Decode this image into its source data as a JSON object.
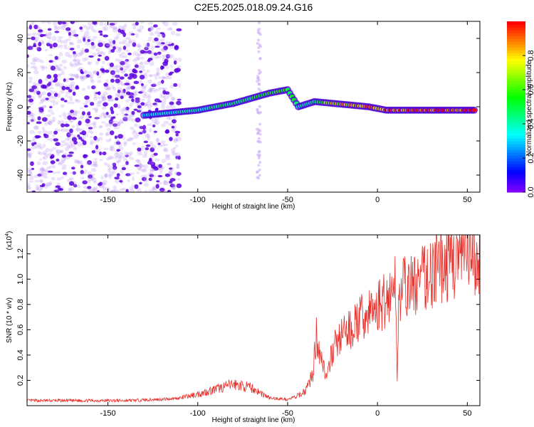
{
  "title": "C2E5.2025.018.09.24.G16",
  "chart_data": [
    {
      "type": "heatmap",
      "xlabel": "Height of straight line (km)",
      "ylabel": "Frequency (Hz)",
      "xlim": [
        -195,
        57
      ],
      "ylim": [
        -50,
        50
      ],
      "xticks": [
        -150,
        -100,
        -50,
        0,
        50
      ],
      "yticks": [
        -40,
        -20,
        0,
        20,
        40
      ],
      "colorbar": {
        "label": "Normalized spectral amplitude",
        "range": [
          0,
          1
        ],
        "ticks": [
          "0.0",
          "0.2",
          "0.4",
          "0.6",
          "0.8"
        ],
        "colormap": "rainbow"
      },
      "ridge": [
        {
          "x": -130,
          "y": -5,
          "amp": 0.3
        },
        {
          "x": -120,
          "y": -4,
          "amp": 0.35
        },
        {
          "x": -110,
          "y": -3,
          "amp": 0.4
        },
        {
          "x": -100,
          "y": -2,
          "amp": 0.4
        },
        {
          "x": -90,
          "y": 0,
          "amp": 0.45
        },
        {
          "x": -80,
          "y": 2,
          "amp": 0.5
        },
        {
          "x": -70,
          "y": 5,
          "amp": 0.5
        },
        {
          "x": -60,
          "y": 8,
          "amp": 0.55
        },
        {
          "x": -50,
          "y": 10,
          "amp": 0.6
        },
        {
          "x": -44,
          "y": 0,
          "amp": 0.4
        },
        {
          "x": -35,
          "y": 3,
          "amp": 0.5
        },
        {
          "x": -25,
          "y": 2,
          "amp": 0.75
        },
        {
          "x": -15,
          "y": 1,
          "amp": 0.8
        },
        {
          "x": -5,
          "y": 0,
          "amp": 0.85
        },
        {
          "x": 5,
          "y": -2,
          "amp": 0.9
        },
        {
          "x": 20,
          "y": -2,
          "amp": 0.95
        },
        {
          "x": 40,
          "y": -2,
          "amp": 0.95
        },
        {
          "x": 55,
          "y": -2,
          "amp": 0.95
        }
      ]
    },
    {
      "type": "line",
      "xlabel": "Height of straight line (km)",
      "ylabel": "SNR (10 * v/v)",
      "yscale_label": "(x10",
      "yscale_exp": "4",
      "yscale_close": ")",
      "xlim": [
        -195,
        57
      ],
      "ylim": [
        0,
        1.35
      ],
      "xticks": [
        -150,
        -100,
        -50,
        0,
        50
      ],
      "yticks": [
        0.2,
        0.4,
        0.6,
        0.8,
        1.0,
        1.2
      ],
      "color": "#e8302a",
      "series": [
        {
          "x": [
            -195,
            -180,
            -160,
            -140,
            -120,
            -110,
            -100,
            -90,
            -80,
            -70,
            -60,
            -50,
            -45,
            -40,
            -36,
            -34,
            -30,
            -28,
            -25,
            -20,
            -15,
            -10,
            -5,
            0,
            5,
            8,
            10,
            11,
            12,
            15,
            20,
            25,
            30,
            35,
            40,
            45,
            50,
            55,
            57
          ],
          "y": [
            0.04,
            0.04,
            0.04,
            0.04,
            0.05,
            0.06,
            0.09,
            0.13,
            0.17,
            0.14,
            0.06,
            0.05,
            0.07,
            0.12,
            0.25,
            0.55,
            0.32,
            0.2,
            0.45,
            0.55,
            0.6,
            0.68,
            0.72,
            0.78,
            0.85,
            0.9,
            0.95,
            0.25,
            0.93,
            0.92,
            0.95,
            1.0,
            1.05,
            1.1,
            1.13,
            1.17,
            1.15,
            1.13,
            1.12
          ]
        }
      ]
    }
  ]
}
